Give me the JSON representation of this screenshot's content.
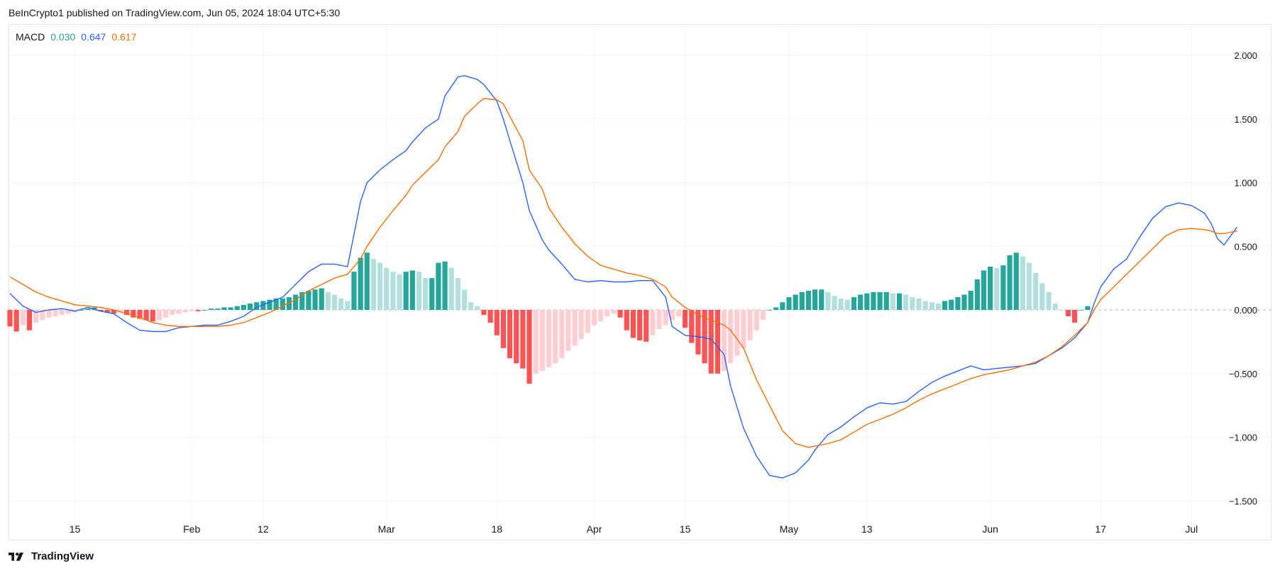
{
  "header": {
    "published": "BeInCrypto1 published on TradingView.com, Jun 05, 2024 18:04 UTC+5:30"
  },
  "footer": {
    "brand": "TradingView"
  },
  "legend": {
    "name": "MACD",
    "histogram_value": "0.030",
    "macd_value": "0.647",
    "signal_value": "0.617"
  },
  "colors": {
    "macd": "#2962ff",
    "signal": "#ff6d00",
    "hist_up_strong": "#26a69a",
    "hist_up_weak": "#b2dfdb",
    "hist_down_strong": "#ff5252",
    "hist_down_weak": "#ffcdd2",
    "grid": "#f0f3fa",
    "zero": "#b2b5be",
    "text": "#131722"
  },
  "chart_data": {
    "type": "line",
    "title": "MACD",
    "xlabel": "",
    "ylabel": "",
    "grid": true,
    "ylim": [
      -1.75,
      2.2
    ],
    "x_range": [
      0,
      187
    ],
    "x_ticks": [
      {
        "x": 10,
        "label": "15"
      },
      {
        "x": 28,
        "label": "Feb"
      },
      {
        "x": 39,
        "label": "12"
      },
      {
        "x": 58,
        "label": "Mar"
      },
      {
        "x": 75,
        "label": "18"
      },
      {
        "x": 90,
        "label": "Apr"
      },
      {
        "x": 104,
        "label": "15"
      },
      {
        "x": 120,
        "label": "May"
      },
      {
        "x": 132,
        "label": "13"
      },
      {
        "x": 151,
        "label": "Jun"
      },
      {
        "x": 168,
        "label": "17"
      },
      {
        "x": 182,
        "label": "Jul"
      }
    ],
    "y_ticks": [
      {
        "value": 2.0,
        "label": "2.000"
      },
      {
        "value": 1.5,
        "label": "1.500"
      },
      {
        "value": 1.0,
        "label": "1.000"
      },
      {
        "value": 0.5,
        "label": "0.500"
      },
      {
        "value": 0.0,
        "label": "0.000"
      },
      {
        "value": -0.5,
        "label": "−0.500"
      },
      {
        "value": -1.0,
        "label": "−1.000"
      },
      {
        "value": -1.5,
        "label": "−1.500"
      }
    ],
    "series": [
      {
        "name": "MACD",
        "points": [
          [
            0,
            0.13
          ],
          [
            2,
            0.03
          ],
          [
            4,
            -0.02
          ],
          [
            6,
            0.0
          ],
          [
            8,
            0.01
          ],
          [
            10,
            -0.01
          ],
          [
            12,
            0.02
          ],
          [
            14,
            -0.01
          ],
          [
            16,
            -0.03
          ],
          [
            18,
            -0.1
          ],
          [
            20,
            -0.16
          ],
          [
            22,
            -0.17
          ],
          [
            24,
            -0.17
          ],
          [
            26,
            -0.14
          ],
          [
            28,
            -0.13
          ],
          [
            30,
            -0.12
          ],
          [
            32,
            -0.12
          ],
          [
            34,
            -0.09
          ],
          [
            36,
            -0.05
          ],
          [
            38,
            0.02
          ],
          [
            40,
            0.06
          ],
          [
            42,
            0.1
          ],
          [
            44,
            0.2
          ],
          [
            46,
            0.3
          ],
          [
            48,
            0.36
          ],
          [
            50,
            0.36
          ],
          [
            52,
            0.34
          ],
          [
            54,
            0.85
          ],
          [
            55,
            1.0
          ],
          [
            57,
            1.1
          ],
          [
            59,
            1.18
          ],
          [
            61,
            1.25
          ],
          [
            62,
            1.32
          ],
          [
            64,
            1.43
          ],
          [
            66,
            1.5
          ],
          [
            67,
            1.68
          ],
          [
            69,
            1.83
          ],
          [
            70,
            1.84
          ],
          [
            72,
            1.81
          ],
          [
            73,
            1.77
          ],
          [
            75,
            1.64
          ],
          [
            76,
            1.5
          ],
          [
            77,
            1.33
          ],
          [
            79,
            1.0
          ],
          [
            80,
            0.78
          ],
          [
            82,
            0.55
          ],
          [
            83,
            0.47
          ],
          [
            85,
            0.36
          ],
          [
            87,
            0.24
          ],
          [
            89,
            0.22
          ],
          [
            91,
            0.23
          ],
          [
            93,
            0.22
          ],
          [
            95,
            0.22
          ],
          [
            97,
            0.23
          ],
          [
            99,
            0.23
          ],
          [
            101,
            0.1
          ],
          [
            102,
            -0.13
          ],
          [
            104,
            -0.2
          ],
          [
            106,
            -0.21
          ],
          [
            108,
            -0.23
          ],
          [
            110,
            -0.35
          ],
          [
            111,
            -0.6
          ],
          [
            113,
            -0.93
          ],
          [
            115,
            -1.15
          ],
          [
            117,
            -1.3
          ],
          [
            119,
            -1.32
          ],
          [
            121,
            -1.28
          ],
          [
            123,
            -1.18
          ],
          [
            124,
            -1.1
          ],
          [
            126,
            -0.98
          ],
          [
            128,
            -0.92
          ],
          [
            130,
            -0.84
          ],
          [
            132,
            -0.77
          ],
          [
            134,
            -0.73
          ],
          [
            136,
            -0.74
          ],
          [
            138,
            -0.72
          ],
          [
            140,
            -0.64
          ],
          [
            142,
            -0.57
          ],
          [
            144,
            -0.52
          ],
          [
            146,
            -0.48
          ],
          [
            148,
            -0.44
          ],
          [
            150,
            -0.47
          ],
          [
            152,
            -0.46
          ],
          [
            154,
            -0.45
          ],
          [
            156,
            -0.44
          ],
          [
            158,
            -0.42
          ],
          [
            160,
            -0.36
          ],
          [
            162,
            -0.3
          ],
          [
            164,
            -0.22
          ],
          [
            166,
            -0.1
          ],
          [
            167,
            0.05
          ],
          [
            168,
            0.18
          ],
          [
            170,
            0.32
          ],
          [
            172,
            0.4
          ],
          [
            174,
            0.57
          ],
          [
            176,
            0.72
          ],
          [
            178,
            0.81
          ],
          [
            180,
            0.84
          ],
          [
            182,
            0.82
          ],
          [
            184,
            0.76
          ],
          [
            185,
            0.68
          ],
          [
            186,
            0.56
          ],
          [
            187,
            0.51
          ],
          [
            188,
            0.58
          ],
          [
            189,
            0.65
          ]
        ]
      },
      {
        "name": "Signal",
        "points": [
          [
            0,
            0.26
          ],
          [
            2,
            0.2
          ],
          [
            4,
            0.14
          ],
          [
            6,
            0.1
          ],
          [
            8,
            0.07
          ],
          [
            10,
            0.04
          ],
          [
            12,
            0.03
          ],
          [
            14,
            0.02
          ],
          [
            16,
            0.0
          ],
          [
            18,
            -0.03
          ],
          [
            20,
            -0.06
          ],
          [
            22,
            -0.1
          ],
          [
            24,
            -0.12
          ],
          [
            26,
            -0.13
          ],
          [
            28,
            -0.13
          ],
          [
            30,
            -0.13
          ],
          [
            32,
            -0.13
          ],
          [
            34,
            -0.12
          ],
          [
            36,
            -0.1
          ],
          [
            38,
            -0.06
          ],
          [
            40,
            -0.02
          ],
          [
            42,
            0.03
          ],
          [
            44,
            0.08
          ],
          [
            46,
            0.15
          ],
          [
            48,
            0.2
          ],
          [
            50,
            0.25
          ],
          [
            52,
            0.28
          ],
          [
            54,
            0.4
          ],
          [
            55,
            0.5
          ],
          [
            57,
            0.65
          ],
          [
            59,
            0.78
          ],
          [
            61,
            0.9
          ],
          [
            62,
            0.98
          ],
          [
            64,
            1.08
          ],
          [
            66,
            1.18
          ],
          [
            67,
            1.28
          ],
          [
            69,
            1.4
          ],
          [
            70,
            1.52
          ],
          [
            72,
            1.62
          ],
          [
            73,
            1.66
          ],
          [
            75,
            1.65
          ],
          [
            76,
            1.62
          ],
          [
            77,
            1.52
          ],
          [
            79,
            1.33
          ],
          [
            80,
            1.1
          ],
          [
            82,
            0.95
          ],
          [
            83,
            0.8
          ],
          [
            85,
            0.65
          ],
          [
            87,
            0.52
          ],
          [
            89,
            0.42
          ],
          [
            91,
            0.35
          ],
          [
            93,
            0.32
          ],
          [
            95,
            0.29
          ],
          [
            97,
            0.27
          ],
          [
            99,
            0.24
          ],
          [
            101,
            0.18
          ],
          [
            102,
            0.1
          ],
          [
            104,
            0.02
          ],
          [
            106,
            -0.04
          ],
          [
            108,
            -0.08
          ],
          [
            110,
            -0.12
          ],
          [
            111,
            -0.16
          ],
          [
            113,
            -0.3
          ],
          [
            115,
            -0.55
          ],
          [
            117,
            -0.75
          ],
          [
            119,
            -0.95
          ],
          [
            121,
            -1.05
          ],
          [
            123,
            -1.08
          ],
          [
            124,
            -1.07
          ],
          [
            126,
            -1.05
          ],
          [
            128,
            -1.02
          ],
          [
            130,
            -0.96
          ],
          [
            132,
            -0.9
          ],
          [
            134,
            -0.86
          ],
          [
            136,
            -0.82
          ],
          [
            138,
            -0.77
          ],
          [
            140,
            -0.71
          ],
          [
            142,
            -0.66
          ],
          [
            144,
            -0.62
          ],
          [
            146,
            -0.58
          ],
          [
            148,
            -0.54
          ],
          [
            150,
            -0.51
          ],
          [
            152,
            -0.49
          ],
          [
            154,
            -0.47
          ],
          [
            156,
            -0.44
          ],
          [
            158,
            -0.41
          ],
          [
            160,
            -0.36
          ],
          [
            162,
            -0.29
          ],
          [
            164,
            -0.2
          ],
          [
            166,
            -0.1
          ],
          [
            167,
            0.0
          ],
          [
            168,
            0.08
          ],
          [
            170,
            0.18
          ],
          [
            172,
            0.28
          ],
          [
            174,
            0.38
          ],
          [
            176,
            0.48
          ],
          [
            178,
            0.58
          ],
          [
            180,
            0.63
          ],
          [
            182,
            0.64
          ],
          [
            184,
            0.63
          ],
          [
            185,
            0.62
          ],
          [
            186,
            0.6
          ],
          [
            187,
            0.6
          ],
          [
            188,
            0.61
          ],
          [
            189,
            0.62
          ]
        ]
      }
    ],
    "histogram": {
      "name": "Histogram",
      "x_start": 0,
      "values": [
        -0.13,
        -0.17,
        -0.12,
        -0.16,
        -0.1,
        -0.08,
        -0.06,
        -0.05,
        -0.04,
        -0.03,
        -0.02,
        0.0,
        0.01,
        0.02,
        -0.01,
        -0.02,
        -0.03,
        -0.02,
        -0.04,
        -0.06,
        -0.07,
        -0.08,
        -0.09,
        -0.08,
        -0.06,
        -0.04,
        -0.03,
        -0.02,
        -0.01,
        -0.01,
        0.0,
        0.01,
        0.01,
        0.02,
        0.02,
        0.03,
        0.04,
        0.05,
        0.06,
        0.07,
        0.08,
        0.09,
        0.09,
        0.1,
        0.12,
        0.14,
        0.15,
        0.16,
        0.17,
        0.14,
        0.12,
        0.09,
        0.07,
        0.3,
        0.41,
        0.45,
        0.4,
        0.37,
        0.33,
        0.3,
        0.28,
        0.3,
        0.31,
        0.3,
        0.25,
        0.25,
        0.37,
        0.38,
        0.33,
        0.25,
        0.16,
        0.06,
        0.03,
        -0.04,
        -0.1,
        -0.2,
        -0.3,
        -0.38,
        -0.42,
        -0.46,
        -0.58,
        -0.5,
        -0.48,
        -0.45,
        -0.42,
        -0.38,
        -0.32,
        -0.28,
        -0.23,
        -0.18,
        -0.12,
        -0.09,
        -0.05,
        -0.03,
        -0.06,
        -0.16,
        -0.22,
        -0.24,
        -0.25,
        -0.2,
        -0.15,
        -0.12,
        -0.08,
        -0.05,
        -0.14,
        -0.26,
        -0.35,
        -0.42,
        -0.5,
        -0.5,
        -0.48,
        -0.42,
        -0.36,
        -0.3,
        -0.24,
        -0.16,
        -0.08,
        0.0,
        0.02,
        0.06,
        0.1,
        0.12,
        0.14,
        0.15,
        0.16,
        0.16,
        0.14,
        0.11,
        0.09,
        0.08,
        0.1,
        0.12,
        0.13,
        0.14,
        0.14,
        0.14,
        0.13,
        0.13,
        0.12,
        0.1,
        0.09,
        0.07,
        0.06,
        0.05,
        0.07,
        0.08,
        0.1,
        0.12,
        0.15,
        0.24,
        0.31,
        0.34,
        0.33,
        0.35,
        0.43,
        0.45,
        0.42,
        0.37,
        0.29,
        0.21,
        0.14,
        0.05,
        0.0,
        -0.05,
        -0.1,
        0.0,
        0.03
      ]
    }
  }
}
